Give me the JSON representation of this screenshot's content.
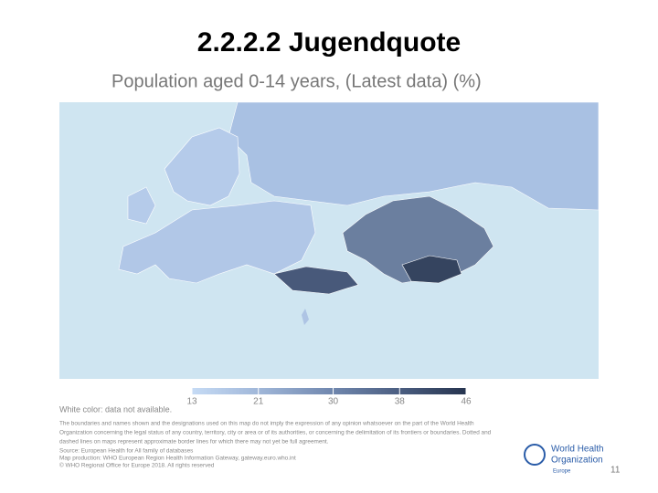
{
  "slide": {
    "title": "2.2.2.2 Jugendquote",
    "page_number": "11"
  },
  "map": {
    "title": "Population aged 0-14 years, (Latest data) (%)",
    "legend": {
      "ticks": [
        13,
        21,
        30,
        38,
        46
      ],
      "colors": [
        "#c6dbf5",
        "#9fb6d8",
        "#7289b0",
        "#4c5f82",
        "#26344f"
      ]
    },
    "notes": [
      "White color: data not available.",
      "The boundaries and names shown and the designations used on this map do not imply the expression of any opinion whatsoever on the part of the World Health",
      "Organization concerning the legal status of any country, territory, city or area or of its authorities, or concerning the delimitation of its frontiers or boundaries. Dotted and",
      "dashed lines on maps represent approximate border lines for which there may not yet be full agreement.",
      "Source: European Health for All family of databases",
      "Map production: WHO European Region Health Information Gateway, gateway.euro.who.int",
      "© WHO Regional Office for Europe 2018. All rights reserved"
    ]
  },
  "logo": {
    "name_lines": [
      "World Health",
      "Organization"
    ],
    "region": "Europe"
  }
}
